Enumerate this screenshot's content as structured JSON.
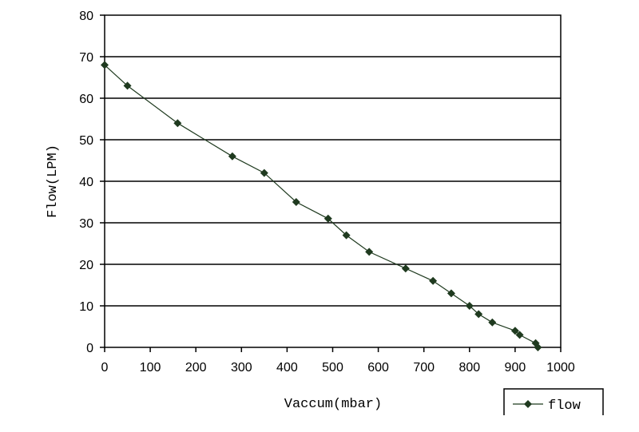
{
  "chart_data": {
    "type": "line",
    "title": "",
    "xlabel": "Vaccum(mbar)",
    "ylabel": "Flow(LPM)",
    "xlim": [
      0,
      1000
    ],
    "ylim": [
      0,
      80
    ],
    "xticks": [
      0,
      100,
      200,
      300,
      400,
      500,
      600,
      700,
      800,
      900,
      1000
    ],
    "yticks": [
      0,
      10,
      20,
      30,
      40,
      50,
      60,
      70,
      80
    ],
    "grid": "horizontal",
    "legend": "bottom-right",
    "series": [
      {
        "name": "flow",
        "color": "#1f3a1f",
        "marker": "diamond",
        "x": [
          0,
          50,
          160,
          280,
          350,
          420,
          490,
          530,
          580,
          660,
          720,
          760,
          800,
          820,
          850,
          900,
          910,
          945,
          950
        ],
        "y": [
          68,
          63,
          54,
          46,
          42,
          35,
          31,
          27,
          23,
          19,
          16,
          13,
          10,
          8,
          6,
          4,
          3,
          1,
          0
        ]
      }
    ]
  }
}
